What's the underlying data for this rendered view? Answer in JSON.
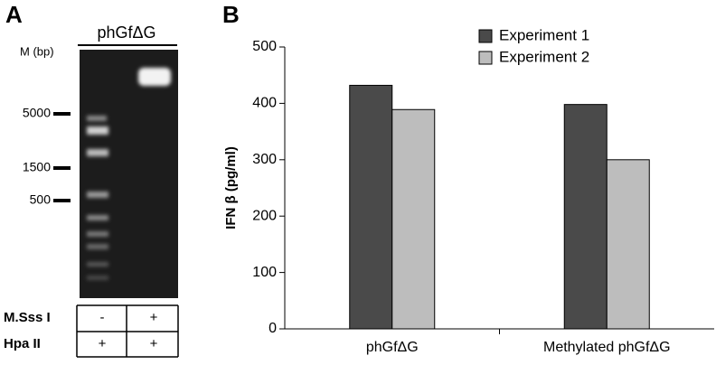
{
  "panel_a": {
    "label": "A",
    "construct": "phGfΔG",
    "marker_title": "M (bp)",
    "markers": [
      "5000",
      "1500",
      "500"
    ],
    "table": [
      [
        "M.Sss I",
        "-",
        "+"
      ],
      [
        "Hpa II",
        "+",
        "+"
      ]
    ]
  },
  "chart_data": {
    "type": "bar",
    "panel_label": "B",
    "ylabel": "IFN β (pg/ml)",
    "categories": [
      "phGfΔG",
      "Methylated phGfΔG"
    ],
    "series": [
      {
        "name": "Experiment 1",
        "color": "#4a4a4a",
        "values": [
          432,
          398
        ]
      },
      {
        "name": "Experiment 2",
        "color": "#bdbdbd",
        "values": [
          389,
          300
        ]
      }
    ],
    "ylim": [
      0,
      500
    ],
    "yticks": [
      0,
      100,
      200,
      300,
      400,
      500
    ],
    "legend": "top"
  }
}
